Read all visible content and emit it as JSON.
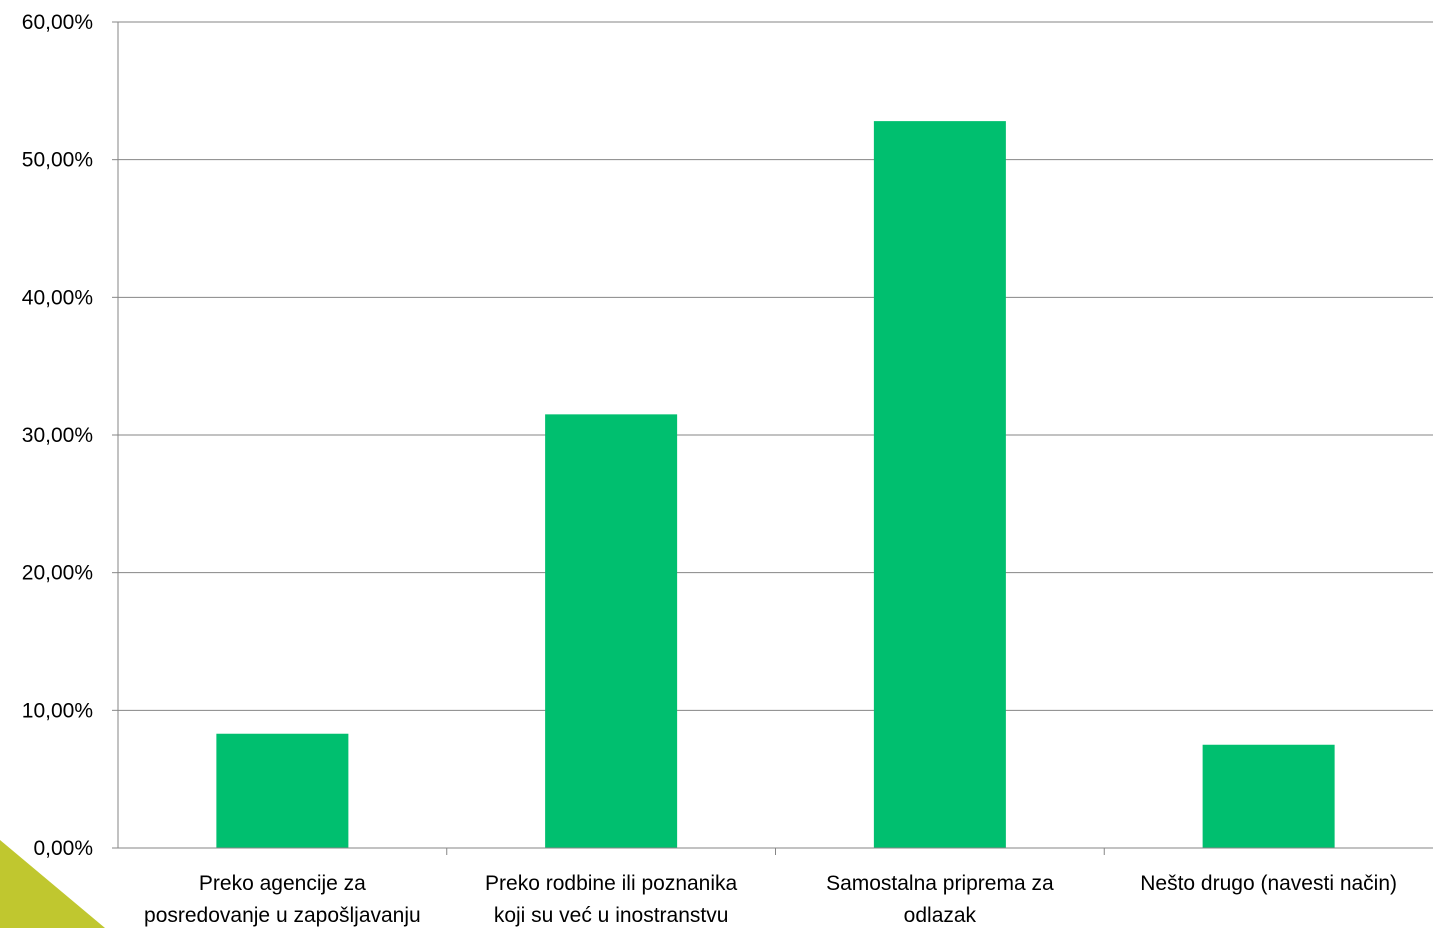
{
  "chart_data": {
    "type": "bar",
    "categories": [
      [
        "Preko agencije za",
        "posredovanje u zapošljavanju"
      ],
      [
        "Preko rodbine ili poznanika",
        "koji su već u inostranstvu"
      ],
      [
        "Samostalna priprema za",
        "odlazak"
      ],
      [
        "Nešto drugo (navesti način)"
      ]
    ],
    "values": [
      8.3,
      31.5,
      52.8,
      7.5
    ],
    "ylim": [
      0,
      60
    ],
    "yticks": [
      "0,00%",
      "10,00%",
      "20,00%",
      "30,00%",
      "40,00%",
      "50,00%",
      "60,00%"
    ],
    "grid": true,
    "bar_color": "#00BF6F",
    "grid_color": "#868686"
  },
  "decoration": {
    "corner_color": "#C0C72F"
  }
}
